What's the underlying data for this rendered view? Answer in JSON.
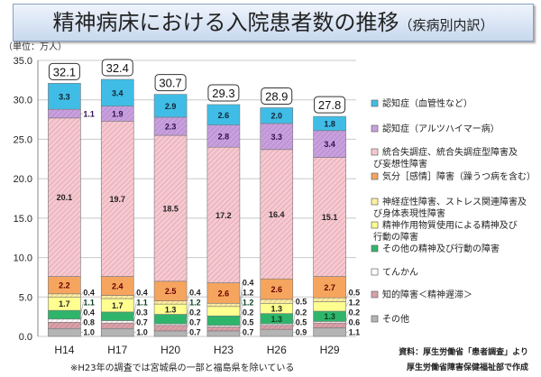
{
  "title": {
    "main": "精神病床における入院患者数の推移",
    "sub": "（疾病別内訳）"
  },
  "unit_label": "（単位：万人）",
  "note": "※H23年の調査では宮城県の一部と福島県を除いている",
  "source": [
    "資料：厚生労働省「患者調査」より",
    "厚生労働省障害保健福祉部で作成"
  ],
  "chart_data": {
    "type": "bar",
    "stacked": true,
    "categories": [
      "H14",
      "H17",
      "H20",
      "H23",
      "H26",
      "H29"
    ],
    "totals": [
      32.1,
      32.4,
      30.7,
      29.3,
      28.9,
      27.8
    ],
    "ylim": [
      0,
      35
    ],
    "yticks": [
      "0.0",
      "5.0",
      "10.0",
      "15.0",
      "20.0",
      "25.0",
      "30.0",
      "35.0"
    ],
    "grid": true,
    "legend_position": "right",
    "series": [
      {
        "name": "その他",
        "color": "#b4b4b4",
        "values": [
          1.0,
          1.0,
          0.7,
          0.7,
          0.9,
          1.1
        ]
      },
      {
        "name": "知的障害＜精神遅滞＞",
        "color": "#d9a0a8",
        "hatch": true,
        "values": [
          0.8,
          0.7,
          0.7,
          0.5,
          0.5,
          0.6
        ]
      },
      {
        "name": "てんかん",
        "color": "#ffffff",
        "hatch": true,
        "values": [
          0.4,
          0.3,
          0.2,
          0.2,
          0.2,
          0.2
        ]
      },
      {
        "name": "その他の精神及び行動の障害",
        "color": "#2fb56b",
        "values": [
          1.1,
          1.1,
          1.2,
          1.2,
          1.3,
          1.3
        ]
      },
      {
        "name": "精神作用物質使用による精神及び行動の障害",
        "color": "#ffff90",
        "values": [
          1.7,
          1.7,
          1.3,
          1.2,
          1.3,
          1.2
        ]
      },
      {
        "name": "神経症性障害、ストレス関連障害及び身体表現性障害",
        "color": "#fff0a0",
        "hatch": true,
        "values": [
          0.4,
          0.4,
          0.4,
          0.4,
          0.5,
          0.5
        ]
      },
      {
        "name": "気分［感情］障害（躁うつ病を含む）",
        "color": "#f6a55e",
        "values": [
          2.2,
          2.4,
          2.5,
          2.6,
          2.6,
          2.7
        ]
      },
      {
        "name": "統合失調症、統合失調症型障害及び妄想性障害",
        "color": "#f7c8d0",
        "hatch": true,
        "values": [
          20.1,
          19.7,
          18.5,
          17.2,
          16.4,
          15.1
        ]
      },
      {
        "name": "認知症（アルツハイマー病）",
        "color": "#c8a0e0",
        "hatch": true,
        "values": [
          1.1,
          1.9,
          2.3,
          2.8,
          3.3,
          3.4
        ]
      },
      {
        "name": "認知症（血管性など）",
        "color": "#40bde6",
        "values": [
          3.3,
          3.4,
          2.9,
          2.6,
          2.0,
          1.8
        ]
      }
    ]
  }
}
